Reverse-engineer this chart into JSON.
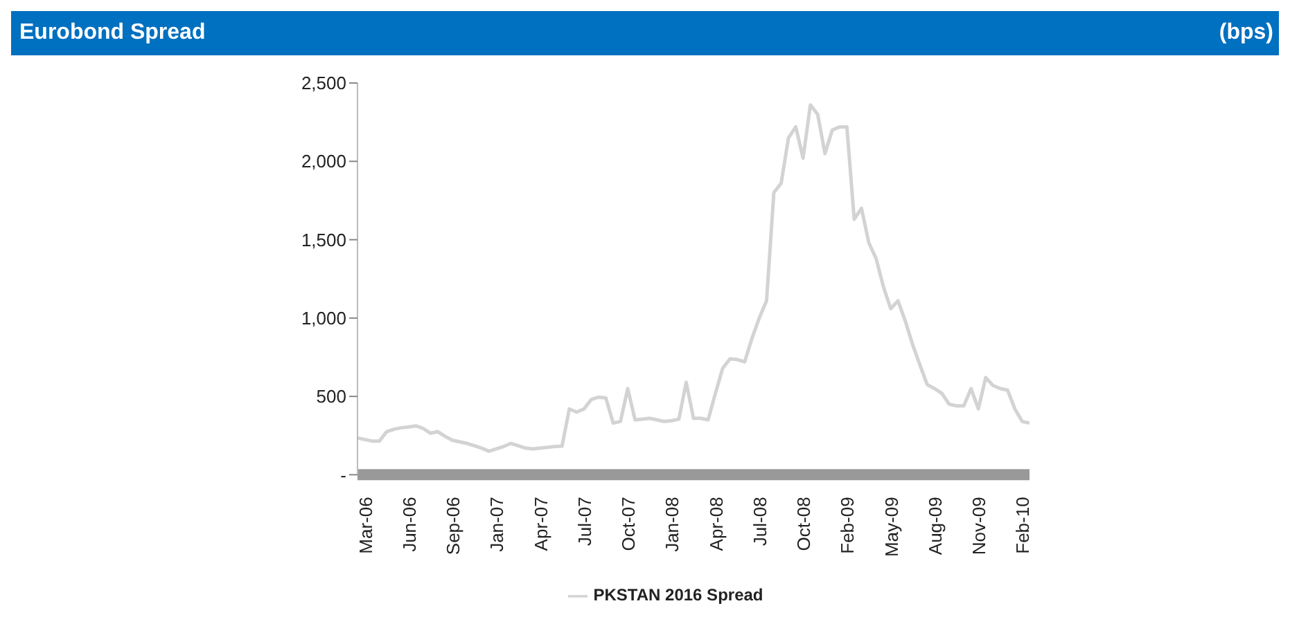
{
  "chart_data": {
    "type": "line",
    "title": "Eurobond Spread",
    "annotations": [
      "(bps)"
    ],
    "categories": [
      null,
      "Mar-06",
      null,
      null,
      null,
      null,
      null,
      "Jun-06",
      null,
      null,
      null,
      null,
      null,
      "Sep-06",
      null,
      null,
      null,
      null,
      null,
      "Jan-07",
      null,
      null,
      null,
      null,
      null,
      "Apr-07",
      null,
      null,
      null,
      null,
      null,
      "Jul-07",
      null,
      null,
      null,
      null,
      null,
      "Oct-07",
      null,
      null,
      null,
      null,
      null,
      "Jan-08",
      null,
      null,
      null,
      null,
      null,
      "Apr-08",
      null,
      null,
      null,
      null,
      null,
      "Jul-08",
      null,
      null,
      null,
      null,
      null,
      "Oct-08",
      null,
      null,
      null,
      null,
      null,
      "Feb-09",
      null,
      null,
      null,
      null,
      null,
      "May-09",
      null,
      null,
      null,
      null,
      null,
      "Aug-09",
      null,
      null,
      null,
      null,
      null,
      "Nov-09",
      null,
      null,
      null,
      null,
      null,
      "Feb-10",
      null
    ],
    "series": [
      {
        "name": "PKSTAN 2016 Spread",
        "color": "#d3d3d3",
        "values": [
          235,
          225,
          215,
          215,
          275,
          290,
          300,
          305,
          312,
          295,
          265,
          275,
          245,
          220,
          210,
          200,
          185,
          170,
          150,
          165,
          180,
          200,
          185,
          170,
          165,
          170,
          175,
          180,
          182,
          420,
          400,
          420,
          480,
          495,
          490,
          330,
          340,
          550,
          350,
          355,
          360,
          350,
          340,
          345,
          355,
          590,
          360,
          360,
          350,
          520,
          680,
          740,
          735,
          720,
          870,
          1000,
          1110,
          1800,
          1860,
          2150,
          2220,
          2020,
          2360,
          2300,
          2050,
          2200,
          2220,
          2220,
          1630,
          1700,
          1480,
          1380,
          1200,
          1060,
          1110,
          980,
          830,
          700,
          575,
          550,
          520,
          450,
          440,
          440,
          550,
          420,
          620,
          570,
          550,
          540,
          420,
          340,
          330
        ]
      }
    ],
    "ylim": [
      0,
      2500
    ],
    "yticks": [
      {
        "value": 0,
        "label": "-"
      },
      {
        "value": 500,
        "label": "500"
      },
      {
        "value": 1000,
        "label": "1,000"
      },
      {
        "value": 1500,
        "label": "1,500"
      },
      {
        "value": 2000,
        "label": "2,000"
      },
      {
        "value": 2500,
        "label": "2,500"
      }
    ],
    "grid": false,
    "legend": "bottom",
    "marker": "none",
    "line_style": "solid"
  }
}
